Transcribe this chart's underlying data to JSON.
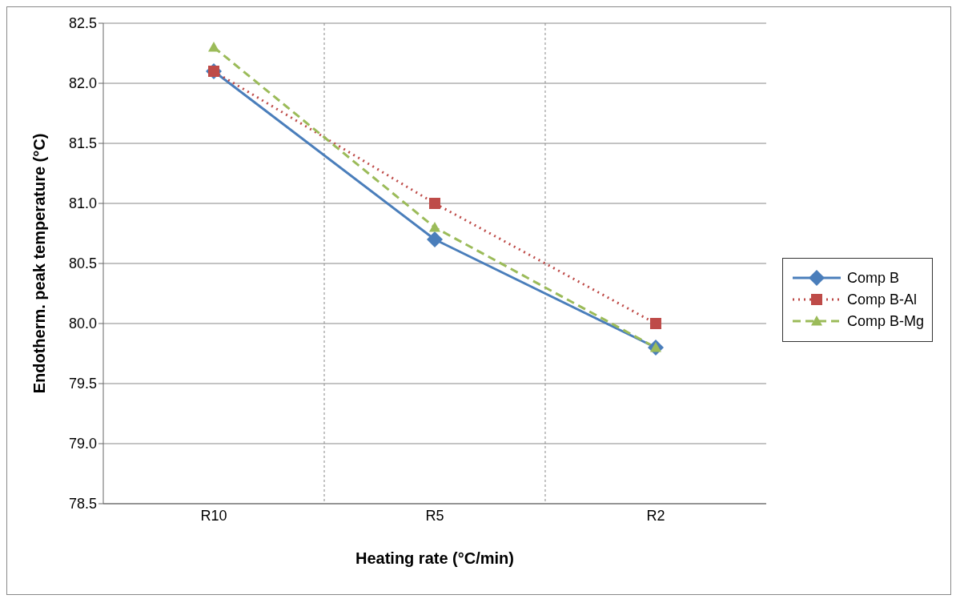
{
  "chart_data": {
    "type": "line",
    "xlabel": "Heating rate (°C/min)",
    "ylabel": "Endotherm. peak  temperature (°C)",
    "categories": [
      "R10",
      "R5",
      "R2"
    ],
    "series": [
      {
        "name": "Comp B",
        "color": "#4a7ebb",
        "values": [
          82.1,
          80.7,
          79.8
        ],
        "marker": "diamond",
        "line_style": "solid"
      },
      {
        "name": "Comp B-Al",
        "color": "#be4b48",
        "values": [
          82.1,
          81.0,
          80.0
        ],
        "marker": "square",
        "line_style": "dotted"
      },
      {
        "name": "Comp B-Mg",
        "color": "#9bbb59",
        "values": [
          82.3,
          80.8,
          79.8
        ],
        "marker": "triangle",
        "line_style": "dashed"
      }
    ],
    "ylim": [
      78.5,
      82.5
    ],
    "yticks": [
      {
        "value": 78.5,
        "label": "78.5"
      },
      {
        "value": 79,
        "label": "79.0"
      },
      {
        "value": 79.5,
        "label": "79.5"
      },
      {
        "value": 80,
        "label": "80.0"
      },
      {
        "value": 80.5,
        "label": "80.5"
      },
      {
        "value": 81,
        "label": "81.0"
      },
      {
        "value": 81.5,
        "label": "81.5"
      },
      {
        "value": 82,
        "label": "82.0"
      },
      {
        "value": 82.5,
        "label": "82.5"
      }
    ],
    "grid": true,
    "legend": "right"
  }
}
